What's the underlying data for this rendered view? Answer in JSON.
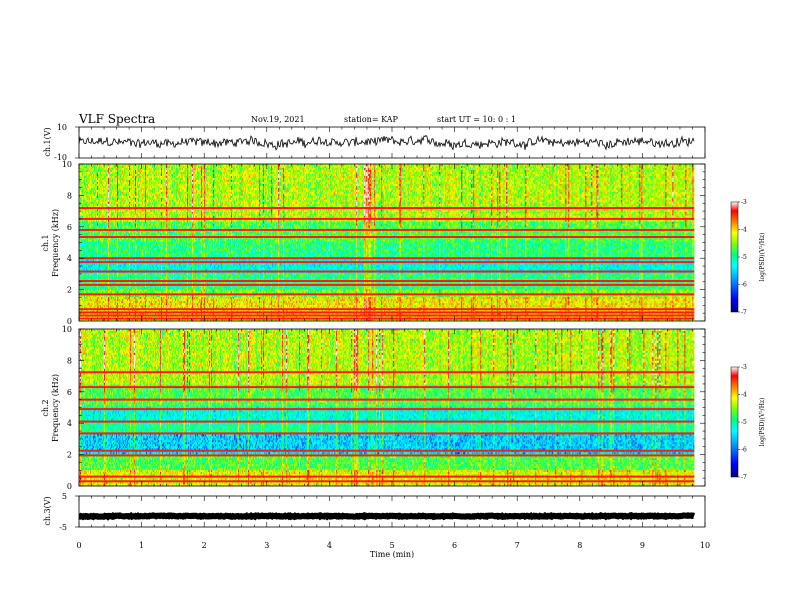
{
  "header": {
    "title": "VLF Spectra",
    "date": "Nov.19, 2021",
    "station": "station= KAP",
    "start": "start  UT =   10: 0  : 1"
  },
  "chart_data": [
    {
      "type": "line",
      "panel": "ch1-waveform",
      "ylabel": "ch.1(V)",
      "ylim": [
        -10,
        10
      ],
      "ytick_labels": [
        "10",
        "-10"
      ],
      "xlim": [
        0,
        10
      ],
      "data_x_end": 9.83,
      "baseline": 0,
      "amplitude": 5.5,
      "color": "#000000"
    },
    {
      "type": "heatmap",
      "panel": "ch1-spectrogram",
      "ylabel": "ch.1\nFrequency (kHz)",
      "ylim": [
        0,
        10
      ],
      "ytick_labels": [
        "0",
        "2",
        "4",
        "6",
        "8",
        "10"
      ],
      "xlim": [
        0,
        10
      ],
      "data_x_end": 9.83,
      "horizontal_lines_khz": [
        0.15,
        0.35,
        0.55,
        0.75,
        1.7,
        2.3,
        2.55,
        3.15,
        3.75,
        4.0,
        5.35,
        5.8,
        6.5,
        7.2
      ],
      "bands": [
        {
          "from": 0,
          "to": 1.5,
          "level": -4.3
        },
        {
          "from": 1.5,
          "to": 2.0,
          "level": -4.8
        },
        {
          "from": 2.0,
          "to": 3.0,
          "level": -5.2
        },
        {
          "from": 3.0,
          "to": 4.0,
          "level": -5.6
        },
        {
          "from": 4.0,
          "to": 5.0,
          "level": -5.2
        },
        {
          "from": 5.0,
          "to": 6.3,
          "level": -5.0
        },
        {
          "from": 6.3,
          "to": 10.0,
          "level": -4.6
        }
      ]
    },
    {
      "type": "heatmap",
      "panel": "ch2-spectrogram",
      "ylabel": "ch.2\nFrequency (kHz)",
      "ylim": [
        0,
        10
      ],
      "ytick_labels": [
        "0",
        "2",
        "4",
        "6",
        "8",
        "10"
      ],
      "xlim": [
        0,
        10
      ],
      "data_x_end": 9.83,
      "horizontal_lines_khz": [
        0.3,
        0.6,
        1.95,
        2.25,
        3.35,
        4.1,
        4.9,
        5.5,
        6.3,
        7.25
      ],
      "bands": [
        {
          "from": 0,
          "to": 1.0,
          "level": -4.4
        },
        {
          "from": 1.0,
          "to": 2.0,
          "level": -5.0
        },
        {
          "from": 2.0,
          "to": 3.3,
          "level": -5.9
        },
        {
          "from": 3.3,
          "to": 4.0,
          "level": -5.3
        },
        {
          "from": 4.0,
          "to": 5.0,
          "level": -5.6
        },
        {
          "from": 5.0,
          "to": 6.5,
          "level": -5.0
        },
        {
          "from": 6.5,
          "to": 10.0,
          "level": -4.6
        }
      ]
    },
    {
      "type": "line",
      "panel": "ch3-waveform",
      "ylabel": "ch.3(V)",
      "ylim": [
        -5,
        5
      ],
      "ytick_labels": [
        "5",
        "-5"
      ],
      "xlim": [
        0,
        10
      ],
      "data_x_end": 9.83,
      "baseline": -1.5,
      "amplitude": 0.3,
      "color": "#000000"
    }
  ],
  "xaxis": {
    "label": "Time  (min)",
    "ticks": [
      "0",
      "1",
      "2",
      "3",
      "4",
      "5",
      "6",
      "7",
      "8",
      "9",
      "10"
    ]
  },
  "colorbar": {
    "label": "log(PSD)(V²/Hz)",
    "range": [
      -7,
      -3
    ],
    "ticks": [
      "-3",
      "-4",
      "-5",
      "-6",
      "-7"
    ],
    "colormap": [
      "#00007f",
      "#0000ff",
      "#00b0ff",
      "#00ffff",
      "#00ff80",
      "#80ff00",
      "#ffff00",
      "#ff8000",
      "#ff0000",
      "#ffffff"
    ]
  }
}
